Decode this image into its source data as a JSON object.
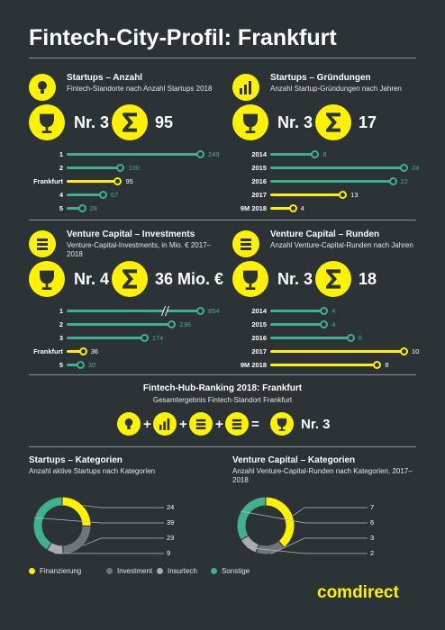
{
  "title": "Fintech-City-Profil: Frankfurt",
  "colors": {
    "accent": "#fff200",
    "teal": "#3fb18c",
    "background": "#2b3336",
    "gray": "#6f767a",
    "lightgray": "#a8acae"
  },
  "sections": [
    {
      "id": "startups-anzahl",
      "icon": "lightbulb-icon",
      "title": "Startups – Anzahl",
      "subtitle": "Fintech-Standorte nach Anzahl Startups 2018",
      "rank": "Nr. 3",
      "sum": "95"
    },
    {
      "id": "startups-gruendungen",
      "icon": "bar-chart-icon",
      "title": "Startups – Gründungen",
      "subtitle": "Anzahl Startup-Gründungen nach Jahren",
      "rank": "Nr. 3",
      "sum": "17"
    },
    {
      "id": "vc-investments",
      "icon": "euro-coins-icon",
      "title": "Venture Capital – Investments",
      "subtitle": "Venture-Capital-Investments, in Mio. € 2017–2018",
      "rank": "Nr. 4",
      "sum": "36 Mio. €"
    },
    {
      "id": "vc-runden",
      "icon": "euro-stack-icon",
      "title": "Venture Capital – Runden",
      "subtitle": "Anzahl Venture-Capital-Runden nach Jahren",
      "rank": "Nr. 3",
      "sum": "18"
    }
  ],
  "hub": {
    "title": "Fintech-Hub-Ranking 2018: Frankfurt",
    "subtitle": "Gesamtergebnis Fintech-Standort Frankfurt",
    "result": "Nr. 3",
    "ops": [
      "+",
      "+",
      "+",
      "="
    ]
  },
  "donuts": [
    {
      "title": "Startups – Kategorien",
      "subtitle": "Anzahl aktive Startups nach Kategorien"
    },
    {
      "title": "Venture Capital – Kategorien",
      "subtitle": "Anzahl Venture-Capital-Runden nach Kategorien, 2017–2018"
    }
  ],
  "legend": [
    {
      "label": "Finanzierung",
      "color": "#fff200"
    },
    {
      "label": "Investment",
      "color": "#6f767a"
    },
    {
      "label": "Insurtech",
      "color": "#a8acae"
    },
    {
      "label": "Sonstige",
      "color": "#3fb18c"
    }
  ],
  "logo": "comdirect",
  "chart_data": [
    {
      "type": "bar",
      "title": "Startups – Anzahl",
      "subtitle": "Fintech-Standorte nach Anzahl Startups 2018",
      "categories": [
        "1",
        "2",
        "Frankfurt",
        "4",
        "5"
      ],
      "values": [
        249,
        100,
        95,
        67,
        28
      ],
      "highlight": "Frankfurt",
      "xlim": [
        0,
        249
      ]
    },
    {
      "type": "bar",
      "title": "Startups – Gründungen",
      "subtitle": "Anzahl Startup-Gründungen nach Jahren",
      "categories": [
        "2014",
        "2015",
        "2016",
        "2017",
        "9M 2018"
      ],
      "values": [
        8,
        24,
        22,
        13,
        4
      ],
      "highlight": [
        "2017",
        "9M 2018"
      ],
      "xlim": [
        0,
        24
      ]
    },
    {
      "type": "bar",
      "title": "Venture Capital – Investments",
      "subtitle": "Venture-Capital-Investments, in Mio. € 2017–2018",
      "categories": [
        "1",
        "2",
        "3",
        "Frankfurt",
        "5"
      ],
      "values": [
        854,
        236,
        174,
        36,
        30
      ],
      "highlight": "Frankfurt",
      "axis_break": true,
      "xlim": [
        0,
        300
      ]
    },
    {
      "type": "bar",
      "title": "Venture Capital – Runden",
      "subtitle": "Anzahl Venture-Capital-Runden nach Jahren",
      "categories": [
        "2014",
        "2015",
        "2016",
        "2017",
        "9M 2018"
      ],
      "values": [
        4,
        4,
        6,
        10,
        8
      ],
      "highlight": [
        "2017",
        "9M 2018"
      ],
      "xlim": [
        0,
        10
      ]
    },
    {
      "type": "pie",
      "title": "Startups – Kategorien",
      "subtitle": "Anzahl aktive Startups nach Kategorien",
      "categories": [
        "Finanzierung",
        "Investment",
        "Insurtech",
        "Sonstige"
      ],
      "values": [
        24,
        23,
        9,
        39
      ]
    },
    {
      "type": "pie",
      "title": "Venture Capital – Kategorien",
      "subtitle": "Anzahl Venture-Capital-Runden nach Kategorien, 2017–2018",
      "categories": [
        "Finanzierung",
        "Investment",
        "Insurtech",
        "Sonstige"
      ],
      "values": [
        7,
        3,
        2,
        6
      ]
    }
  ]
}
